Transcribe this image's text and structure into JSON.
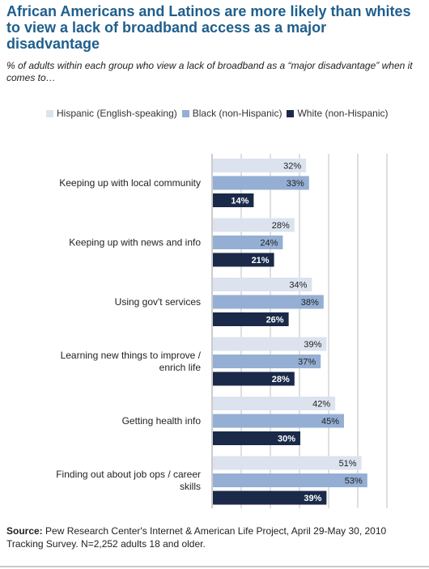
{
  "title": "African Americans and Latinos are more likely than whites to view a lack of broadband access as a major disadvantage",
  "subtitle": "% of adults within each group who view a lack of broadband as a “major disadvantage” when it comes to…",
  "source_label": "Source:",
  "source_text": "Pew Research Center's Internet & American Life Project, April 29-May 30, 2010 Tracking Survey. N=2,252 adults 18 and older.",
  "colors": {
    "hispanic": "#dce3ef",
    "black": "#95afd4",
    "white": "#1a2a48",
    "grid": "#bfbfbf",
    "axis": "#999999",
    "title": "#1f5e8c"
  },
  "chart_data": {
    "type": "bar",
    "orientation": "horizontal",
    "categories": [
      "Keeping up with local community",
      "Keeping up with news and info",
      "Using gov't services",
      "Learning new things to improve / enrich life",
      "Getting health info",
      "Finding out about job ops / career skills"
    ],
    "category_lines": [
      [
        "Keeping up with local community"
      ],
      [
        "Keeping up with news and info"
      ],
      [
        "Using gov't services"
      ],
      [
        "Learning new things to improve /",
        "enrich life"
      ],
      [
        "Getting health info"
      ],
      [
        "Finding out about job ops / career",
        "skills"
      ]
    ],
    "series": [
      {
        "name": "Hispanic (English-speaking)",
        "values": [
          32,
          28,
          34,
          39,
          42,
          51
        ],
        "labels": [
          "32%",
          "28%",
          "34%",
          "39%",
          "42%",
          "51%"
        ]
      },
      {
        "name": "Black (non-Hispanic)",
        "values": [
          33,
          24,
          38,
          37,
          45,
          53
        ],
        "labels": [
          "33%",
          "24%",
          "38%",
          "37%",
          "45%",
          "53%"
        ]
      },
      {
        "name": "White (non-Hispanic)",
        "values": [
          14,
          21,
          26,
          28,
          30,
          39
        ],
        "labels": [
          "14%",
          "21%",
          "26%",
          "28%",
          "30%",
          "39%"
        ]
      }
    ],
    "xlim": [
      0,
      60
    ],
    "grid": true,
    "legend_position": "top"
  }
}
